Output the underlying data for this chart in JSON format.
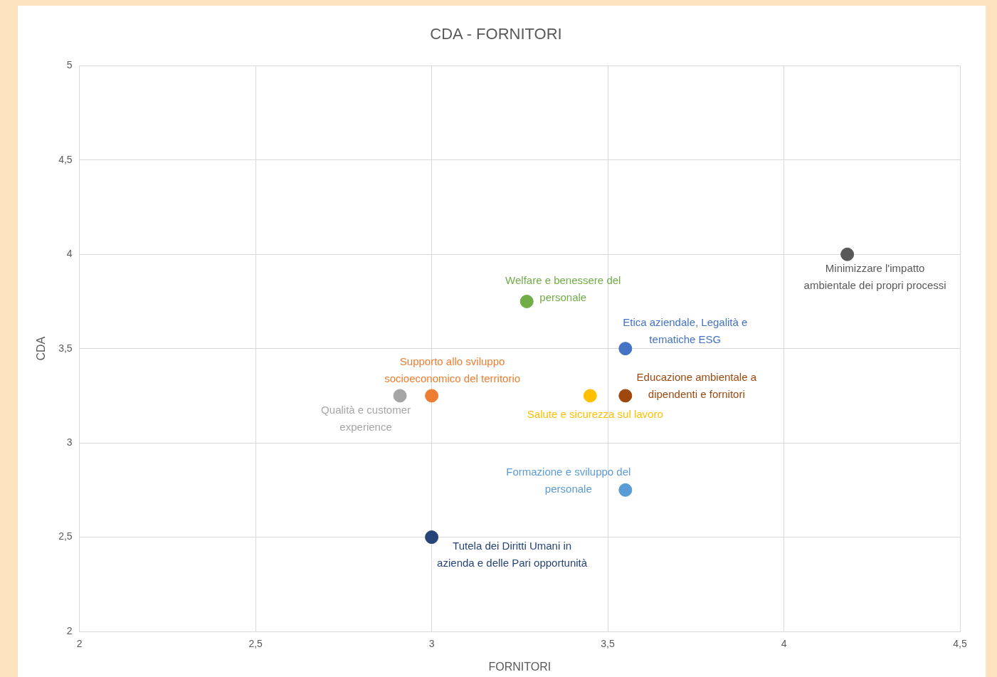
{
  "chart_data": {
    "type": "scatter",
    "title": "CDA - FORNITORI",
    "xlabel": "FORNITORI",
    "ylabel": "CDA",
    "xlim": [
      2,
      4.5
    ],
    "xticks": [
      2,
      {
        "value": 2.5,
        "label": "2,5"
      },
      3,
      {
        "value": 3.5,
        "label": "3,5"
      },
      4,
      {
        "value": 4.5,
        "label": "4,5"
      }
    ],
    "ylim": [
      2,
      5
    ],
    "yticks": [
      2,
      {
        "value": 2.5,
        "label": "2,5"
      },
      3,
      {
        "value": 3.5,
        "label": "3,5"
      },
      4,
      {
        "value": 4.5,
        "label": "4,5"
      },
      5
    ],
    "grid": true,
    "legend": false,
    "marker": "circle",
    "series": [
      {
        "name": "Minimizzare l'impatto ambientale dei propri processi",
        "color": "#595959",
        "x": [
          4.18
        ],
        "values": [
          4
        ]
      },
      {
        "name": "Welfare e benessere del personale",
        "color": "#70ad47",
        "x": [
          3.27
        ],
        "values": [
          3.75
        ]
      },
      {
        "name": "Etica aziendale, Legalità e tematiche ESG",
        "color": "#4472c4",
        "x": [
          3.55
        ],
        "values": [
          3.5
        ]
      },
      {
        "name": "Supporto allo sviluppo socioeconomico del territorio",
        "color": "#ed7d31",
        "x": [
          3
        ],
        "values": [
          3.25
        ]
      },
      {
        "name": "Qualità e customer experience",
        "color": "#a5a5a5",
        "x": [
          2.91
        ],
        "values": [
          3.25
        ]
      },
      {
        "name": "Salute e sicurezza sul lavoro",
        "color": "#ffc000",
        "x": [
          3.45
        ],
        "values": [
          3.25
        ]
      },
      {
        "name": "Educazione ambientale a dipendenti e fornitori",
        "color": "#9e480e",
        "x": [
          3.55
        ],
        "values": [
          3.25
        ]
      },
      {
        "name": "Formazione e sviluppo del personale",
        "color": "#5b9bd5",
        "x": [
          3.55
        ],
        "values": [
          2.75
        ]
      },
      {
        "name": "Tutela dei Diritti Umani in azienda e delle Pari opportunità",
        "color": "#264478",
        "x": [
          3
        ],
        "values": [
          2.5
        ]
      }
    ]
  }
}
